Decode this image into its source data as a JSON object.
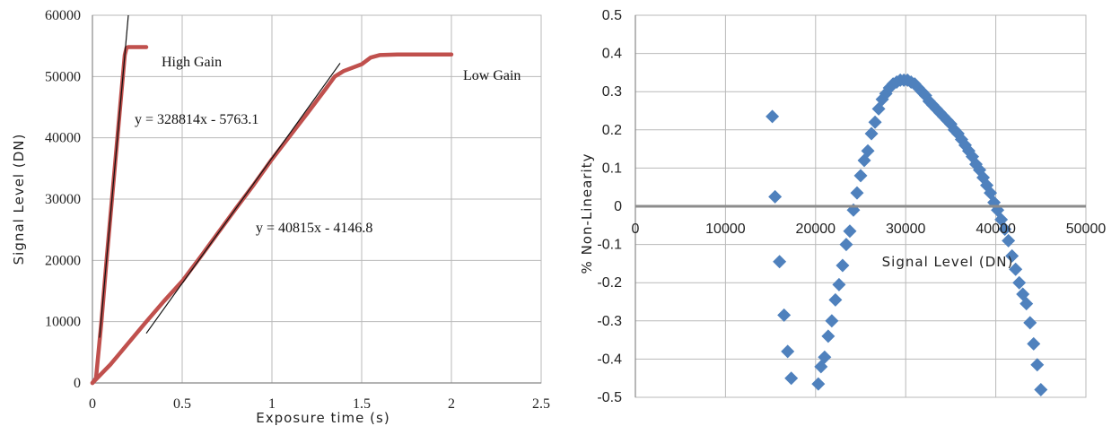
{
  "chart_data": [
    {
      "type": "line",
      "xlabel": "Exposure time (s)",
      "ylabel": "Signal Level  (DN)",
      "xlim": [
        0,
        2.5
      ],
      "ylim": [
        0,
        60000
      ],
      "x_ticks": [
        "0",
        "0.5",
        "1",
        "1.5",
        "2",
        "2.5"
      ],
      "y_ticks": [
        "0",
        "10000",
        "20000",
        "30000",
        "40000",
        "50000",
        "60000"
      ],
      "grid": true,
      "series": [
        {
          "name": "High Gain",
          "color": "#c0504d",
          "x": [
            0,
            0.02,
            0.05,
            0.08,
            0.12,
            0.15,
            0.17,
            0.18,
            0.19,
            0.2,
            0.22,
            0.25,
            0.28,
            0.3
          ],
          "values": [
            0,
            800,
            10000,
            20500,
            33700,
            43600,
            50200,
            53500,
            54700,
            54800,
            54800,
            54800,
            54800,
            54800
          ]
        },
        {
          "name": "Low Gain",
          "color": "#c0504d",
          "x": [
            0,
            0.1,
            0.2,
            0.3,
            0.4,
            0.5,
            0.6,
            0.7,
            0.8,
            0.9,
            1.0,
            1.1,
            1.2,
            1.3,
            1.35,
            1.4,
            1.5,
            1.55,
            1.6,
            1.7,
            1.8,
            1.9,
            2.0
          ],
          "values": [
            0,
            3000,
            6500,
            10000,
            13400,
            16600,
            20500,
            24500,
            28500,
            32400,
            36500,
            40300,
            44100,
            48000,
            50000,
            50900,
            52000,
            53100,
            53500,
            53600,
            53600,
            53600,
            53600
          ]
        }
      ],
      "trendlines": [
        {
          "equation": "y = 328814x - 5763.1",
          "slope": 328814,
          "intercept": -5763.1,
          "x_range": [
            0.04,
            0.2
          ]
        },
        {
          "equation": "y = 40815x - 4146.8",
          "slope": 40815,
          "intercept": -4146.8,
          "x_range": [
            0.3,
            1.38
          ]
        }
      ],
      "annotations": [
        "High Gain",
        "Low Gain"
      ]
    },
    {
      "type": "scatter",
      "xlabel": "Signal Level (DN)",
      "ylabel": "% Non-Linearity",
      "xlim": [
        0,
        50000
      ],
      "ylim": [
        -0.5,
        0.5
      ],
      "x_ticks": [
        "0",
        "10000",
        "20000",
        "30000",
        "40000",
        "50000"
      ],
      "y_ticks": [
        "0.5",
        "0.4",
        "0.3",
        "0.2",
        "0.1",
        "0",
        "-0.1",
        "-0.2",
        "-0.3",
        "-0.4",
        "-0.5"
      ],
      "grid": true,
      "marker_color": "#4f81bd",
      "points": [
        [
          15200,
          0.235
        ],
        [
          15500,
          0.025
        ],
        [
          16000,
          -0.145
        ],
        [
          16500,
          -0.285
        ],
        [
          16900,
          -0.38
        ],
        [
          17300,
          -0.45
        ],
        [
          20300,
          -0.465
        ],
        [
          20600,
          -0.42
        ],
        [
          21000,
          -0.395
        ],
        [
          21400,
          -0.34
        ],
        [
          21800,
          -0.3
        ],
        [
          22200,
          -0.245
        ],
        [
          22600,
          -0.205
        ],
        [
          23000,
          -0.155
        ],
        [
          23400,
          -0.1
        ],
        [
          23800,
          -0.065
        ],
        [
          24200,
          -0.01
        ],
        [
          24600,
          0.035
        ],
        [
          25000,
          0.08
        ],
        [
          25400,
          0.12
        ],
        [
          25800,
          0.145
        ],
        [
          26200,
          0.19
        ],
        [
          26600,
          0.22
        ],
        [
          27000,
          0.255
        ],
        [
          27400,
          0.28
        ],
        [
          27800,
          0.295
        ],
        [
          28200,
          0.31
        ],
        [
          28600,
          0.32
        ],
        [
          29000,
          0.325
        ],
        [
          29400,
          0.33
        ],
        [
          29800,
          0.33
        ],
        [
          30200,
          0.33
        ],
        [
          30600,
          0.325
        ],
        [
          31000,
          0.32
        ],
        [
          31400,
          0.31
        ],
        [
          31800,
          0.3
        ],
        [
          32200,
          0.29
        ],
        [
          32600,
          0.275
        ],
        [
          33000,
          0.265
        ],
        [
          33400,
          0.255
        ],
        [
          33800,
          0.245
        ],
        [
          34200,
          0.235
        ],
        [
          34600,
          0.225
        ],
        [
          35000,
          0.215
        ],
        [
          35400,
          0.2
        ],
        [
          35800,
          0.19
        ],
        [
          36200,
          0.175
        ],
        [
          36600,
          0.16
        ],
        [
          37000,
          0.145
        ],
        [
          37400,
          0.13
        ],
        [
          37800,
          0.11
        ],
        [
          38200,
          0.095
        ],
        [
          38600,
          0.075
        ],
        [
          39000,
          0.055
        ],
        [
          39400,
          0.035
        ],
        [
          39800,
          0.01
        ],
        [
          40200,
          -0.01
        ],
        [
          40600,
          -0.035
        ],
        [
          41000,
          -0.06
        ],
        [
          41400,
          -0.09
        ],
        [
          41800,
          -0.13
        ],
        [
          42200,
          -0.165
        ],
        [
          42600,
          -0.2
        ],
        [
          43000,
          -0.23
        ],
        [
          43400,
          -0.255
        ],
        [
          43800,
          -0.305
        ],
        [
          44200,
          -0.36
        ],
        [
          44600,
          -0.415
        ],
        [
          45000,
          -0.48
        ]
      ]
    }
  ]
}
